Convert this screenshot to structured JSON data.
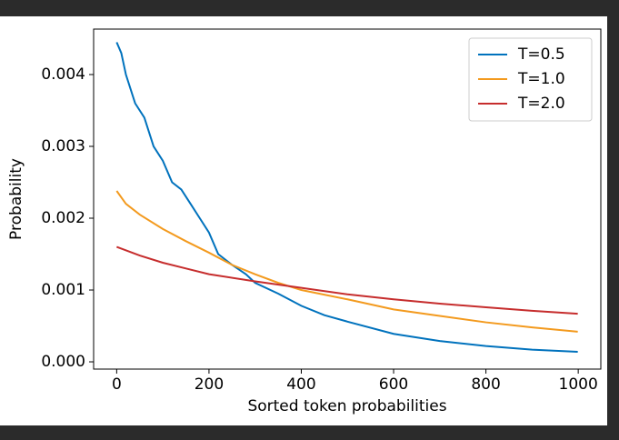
{
  "chart_data": {
    "type": "line",
    "x_label": "Sorted token probabilities",
    "y_label": "Probability",
    "xlim": [
      -49.95,
      1048.95
    ],
    "ylim": [
      -0.000101,
      0.004633
    ],
    "xticks": [
      0,
      200,
      400,
      600,
      800,
      1000
    ],
    "yticks": [
      {
        "value": 0,
        "label": "0.000"
      },
      {
        "value": 0.001,
        "label": "0.001"
      },
      {
        "value": 0.002,
        "label": "0.002"
      },
      {
        "value": 0.003,
        "label": "0.003"
      },
      {
        "value": 0.004,
        "label": "0.004"
      }
    ],
    "legend": "upper right",
    "series": [
      {
        "name": "T=0.5",
        "color": "#0072bd",
        "x": [
          0,
          10,
          20,
          40,
          60,
          80,
          100,
          120,
          140,
          160,
          180,
          200,
          220,
          250,
          280,
          300,
          350,
          400,
          450,
          500,
          600,
          700,
          800,
          900,
          999
        ],
        "values": [
          0.00445,
          0.0043,
          0.004,
          0.0036,
          0.0034,
          0.003,
          0.0028,
          0.0025,
          0.0024,
          0.0022,
          0.002,
          0.0018,
          0.0015,
          0.00135,
          0.00122,
          0.0011,
          0.00095,
          0.00078,
          0.00065,
          0.00056,
          0.00039,
          0.00029,
          0.00022,
          0.00017,
          0.00014
        ]
      },
      {
        "name": "T=1.0",
        "color": "#f39a1e",
        "x": [
          0,
          20,
          50,
          100,
          150,
          200,
          250,
          300,
          350,
          400,
          500,
          600,
          700,
          800,
          900,
          999
        ],
        "values": [
          0.00238,
          0.0022,
          0.00205,
          0.00185,
          0.00168,
          0.00152,
          0.00135,
          0.00122,
          0.0011,
          0.001,
          0.00087,
          0.00073,
          0.00064,
          0.00055,
          0.00048,
          0.00042
        ]
      },
      {
        "name": "T=2.0",
        "color": "#c62d2d",
        "x": [
          0,
          50,
          100,
          150,
          200,
          300,
          400,
          500,
          600,
          700,
          800,
          900,
          999
        ],
        "values": [
          0.0016,
          0.00148,
          0.00138,
          0.0013,
          0.00122,
          0.00112,
          0.00103,
          0.00094,
          0.00087,
          0.00081,
          0.00076,
          0.00071,
          0.00067
        ]
      }
    ]
  }
}
